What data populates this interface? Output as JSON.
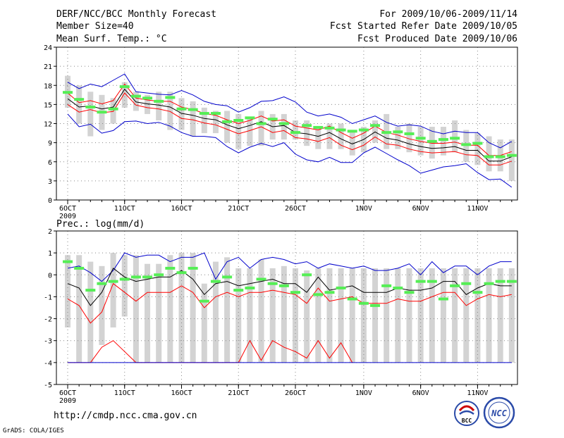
{
  "header": {
    "title": "DERF/NCC/BCC Monthly Forecast",
    "member_size": "Member Size=40",
    "variable": "Mean Surf. Temp.: °C",
    "period": "For 2009/10/06-2009/11/14",
    "fcst_started": "Fcst Started Refer Date 2009/10/05",
    "fcst_produced": "Fcst Produced Date 2009/10/06"
  },
  "footer": {
    "url": "http://cmdp.ncc.cma.gov.cn",
    "credit": "GrADS: COLA/IGES",
    "logo_bcc": "BCC",
    "logo_ncc": "NCC"
  },
  "colors": {
    "ensemble_mean": "#000000",
    "spread_inner": "#ff0000",
    "spread_outer": "#0000cc",
    "observation_marker": "#55ee55",
    "range_bar": "#d3d3d3",
    "grid": "#888888"
  },
  "chart_data": [
    {
      "type": "line",
      "title": "Mean Surf. Temp.: °C",
      "xlabel": "",
      "ylabel": "",
      "ylim": [
        0,
        24
      ],
      "yticks": [
        "0",
        "3",
        "6",
        "9",
        "12",
        "15",
        "18",
        "21",
        "24"
      ],
      "x_tick_labels": [
        "6OCT",
        "11OCT",
        "16OCT",
        "21OCT",
        "26OCT",
        "1NOV",
        "6NOV",
        "11NOV"
      ],
      "x_tick_days": [
        1,
        6,
        11,
        16,
        21,
        27,
        32,
        37
      ],
      "x_year_label": "2009",
      "grid": true,
      "days": [
        1,
        2,
        3,
        4,
        5,
        6,
        7,
        8,
        9,
        10,
        11,
        12,
        13,
        14,
        15,
        16,
        17,
        18,
        19,
        20,
        21,
        22,
        23,
        24,
        25,
        26,
        27,
        28,
        29,
        30,
        31,
        32,
        33,
        34,
        35,
        36,
        37,
        38,
        39,
        40
      ],
      "series": [
        {
          "name": "upper-bound",
          "values": [
            18.5,
            17.5,
            18.2,
            17.8,
            18.8,
            19.8,
            17.0,
            16.8,
            16.6,
            16.5,
            17.2,
            16.5,
            15.5,
            15.0,
            14.8,
            13.8,
            14.5,
            15.5,
            15.6,
            16.2,
            15.4,
            13.8,
            13.2,
            13.5,
            13.0,
            12.0,
            12.6,
            13.2,
            12.2,
            11.6,
            11.8,
            11.6,
            10.8,
            10.4,
            10.8,
            10.6,
            10.6,
            9.0,
            8.2,
            9.2
          ]
        },
        {
          "name": "upper-spread",
          "values": [
            16.8,
            15.3,
            15.6,
            15.1,
            15.6,
            18.2,
            16.0,
            15.7,
            15.5,
            15.5,
            14.6,
            14.2,
            13.6,
            13.3,
            12.6,
            12.0,
            12.5,
            13.2,
            12.4,
            12.6,
            11.6,
            11.3,
            11.0,
            11.6,
            10.6,
            9.7,
            10.5,
            11.6,
            10.6,
            10.2,
            9.6,
            9.2,
            8.9,
            8.9,
            9.1,
            8.6,
            8.6,
            7.0,
            7.0,
            7.6
          ]
        },
        {
          "name": "ensemble-mean",
          "values": [
            15.9,
            14.6,
            14.8,
            14.3,
            14.6,
            17.4,
            15.4,
            15.1,
            14.9,
            14.6,
            13.6,
            13.3,
            12.8,
            12.6,
            11.8,
            11.2,
            11.7,
            12.3,
            11.5,
            11.7,
            10.6,
            10.4,
            10.0,
            10.6,
            9.6,
            8.8,
            9.5,
            10.7,
            9.7,
            9.4,
            8.8,
            8.4,
            8.1,
            8.2,
            8.4,
            7.8,
            7.8,
            6.1,
            6.1,
            6.8
          ]
        },
        {
          "name": "lower-spread",
          "values": [
            15.0,
            13.8,
            14.2,
            13.7,
            13.9,
            16.8,
            14.9,
            14.5,
            14.3,
            13.9,
            12.8,
            12.6,
            12.1,
            11.8,
            11.1,
            10.4,
            10.9,
            11.5,
            10.6,
            10.9,
            9.8,
            9.6,
            9.2,
            9.8,
            8.6,
            7.9,
            8.6,
            9.9,
            8.8,
            8.6,
            8.0,
            7.6,
            7.4,
            7.5,
            7.6,
            7.1,
            7.0,
            5.5,
            5.5,
            6.1
          ]
        },
        {
          "name": "lower-bound",
          "values": [
            13.5,
            11.5,
            11.9,
            10.5,
            10.9,
            12.3,
            12.4,
            12.0,
            12.2,
            11.6,
            10.6,
            10.0,
            10.0,
            9.8,
            8.4,
            7.4,
            8.3,
            8.9,
            8.4,
            9.0,
            7.2,
            6.3,
            6.0,
            6.7,
            5.9,
            5.9,
            7.4,
            8.3,
            7.3,
            6.3,
            5.4,
            4.2,
            4.7,
            5.2,
            5.4,
            5.7,
            4.3,
            3.2,
            3.3,
            2.0
          ]
        },
        {
          "name": "observation",
          "values": [
            16.9,
            15.8,
            14.6,
            13.8,
            14.3,
            17.8,
            16.3,
            16.0,
            15.5,
            16.1,
            14.3,
            14.2,
            13.6,
            13.6,
            12.3,
            12.5,
            12.9,
            12.0,
            12.7,
            12.0,
            10.6,
            11.7,
            11.4,
            11.3,
            11.0,
            10.8,
            11.0,
            11.7,
            10.6,
            10.7,
            10.4,
            9.7,
            9.2,
            9.5,
            9.7,
            8.7,
            8.9,
            6.8,
            6.8,
            7.0
          ]
        }
      ],
      "range_bars": [
        [
          14.5,
          19.5
        ],
        [
          12.0,
          18.0
        ],
        [
          10.0,
          17.0
        ],
        [
          11.0,
          16.5
        ],
        [
          12.0,
          16.0
        ],
        [
          14.5,
          18.5
        ],
        [
          14.0,
          17.0
        ],
        [
          13.5,
          16.5
        ],
        [
          12.5,
          17.0
        ],
        [
          11.0,
          17.0
        ],
        [
          11.0,
          16.0
        ],
        [
          10.0,
          15.5
        ],
        [
          10.5,
          14.5
        ],
        [
          10.5,
          14.0
        ],
        [
          9.0,
          14.0
        ],
        [
          8.0,
          13.5
        ],
        [
          8.5,
          13.0
        ],
        [
          8.5,
          14.0
        ],
        [
          9.5,
          13.5
        ],
        [
          9.5,
          13.5
        ],
        [
          9.5,
          12.5
        ],
        [
          8.5,
          12.5
        ],
        [
          8.0,
          11.5
        ],
        [
          8.0,
          12.0
        ],
        [
          8.0,
          12.0
        ],
        [
          7.0,
          11.0
        ],
        [
          7.5,
          11.5
        ],
        [
          9.0,
          12.5
        ],
        [
          8.0,
          13.5
        ],
        [
          8.0,
          11.5
        ],
        [
          7.5,
          12.0
        ],
        [
          7.0,
          11.5
        ],
        [
          6.5,
          11.5
        ],
        [
          7.0,
          11.5
        ],
        [
          7.5,
          12.5
        ],
        [
          6.0,
          11.0
        ],
        [
          5.5,
          10.5
        ],
        [
          4.5,
          10.0
        ],
        [
          4.5,
          9.5
        ],
        [
          3.0,
          9.5
        ]
      ]
    },
    {
      "type": "line",
      "title": "Prec.: log(mm/d)",
      "xlabel": "",
      "ylabel": "",
      "ylim": [
        -5,
        2
      ],
      "yticks": [
        "-5",
        "-4",
        "-3",
        "-2",
        "-1",
        "0",
        "1",
        "2"
      ],
      "x_tick_labels": [
        "6OCT",
        "11OCT",
        "16OCT",
        "21OCT",
        "26OCT",
        "1NOV",
        "6NOV",
        "11NOV"
      ],
      "x_tick_days": [
        1,
        6,
        11,
        16,
        21,
        27,
        32,
        37
      ],
      "x_year_label": "2009",
      "grid": true,
      "days": [
        1,
        2,
        3,
        4,
        5,
        6,
        7,
        8,
        9,
        10,
        11,
        12,
        13,
        14,
        15,
        16,
        17,
        18,
        19,
        20,
        21,
        22,
        23,
        24,
        25,
        26,
        27,
        28,
        29,
        30,
        31,
        32,
        33,
        34,
        35,
        36,
        37,
        38,
        39,
        40
      ],
      "series": [
        {
          "name": "upper-bound",
          "values": [
            0.3,
            0.4,
            0.1,
            -0.3,
            0.2,
            1.0,
            0.8,
            0.9,
            0.9,
            0.6,
            0.8,
            0.8,
            1.0,
            -0.2,
            0.6,
            0.8,
            0.3,
            0.7,
            0.8,
            0.7,
            0.5,
            0.6,
            0.3,
            0.5,
            0.4,
            0.3,
            0.4,
            0.2,
            0.2,
            0.3,
            0.5,
            0.0,
            0.6,
            0.1,
            0.4,
            0.4,
            0.0,
            0.4,
            0.6,
            0.6
          ]
        },
        {
          "name": "ensemble-mean",
          "values": [
            -0.4,
            -0.6,
            -1.4,
            -0.8,
            0.3,
            -0.1,
            -0.3,
            -0.2,
            -0.1,
            -0.1,
            0.2,
            -0.2,
            -0.9,
            -0.4,
            -0.3,
            -0.5,
            -0.4,
            -0.3,
            -0.2,
            -0.4,
            -0.4,
            -0.8,
            -0.1,
            -0.7,
            -0.6,
            -0.5,
            -0.8,
            -0.8,
            -0.8,
            -0.6,
            -0.7,
            -0.7,
            -0.6,
            -0.3,
            -0.3,
            -0.9,
            -0.6,
            -0.4,
            -0.5,
            -0.5
          ]
        },
        {
          "name": "lower-spread",
          "values": [
            -1.1,
            -1.4,
            -2.2,
            -1.7,
            -0.4,
            -0.8,
            -1.2,
            -0.8,
            -0.8,
            -0.8,
            -0.5,
            -0.8,
            -1.5,
            -1.0,
            -0.8,
            -1.0,
            -0.8,
            -0.8,
            -0.7,
            -0.8,
            -0.9,
            -1.3,
            -0.6,
            -1.2,
            -1.1,
            -1.0,
            -1.3,
            -1.3,
            -1.3,
            -1.1,
            -1.2,
            -1.2,
            -1.0,
            -0.8,
            -0.8,
            -1.4,
            -1.1,
            -0.9,
            -1.0,
            -0.9
          ]
        },
        {
          "name": "lower-spread-deep",
          "values": [
            -4.0,
            -4.0,
            -4.0,
            -3.3,
            -3.0,
            -3.5,
            -4.0,
            -4.0,
            -4.0,
            -4.0,
            -4.0,
            -4.0,
            -4.0,
            -4.0,
            -4.0,
            -4.0,
            -3.0,
            -3.9,
            -3.0,
            -3.3,
            -3.5,
            -3.8,
            -3.0,
            -3.8,
            -3.1,
            -4.0,
            null,
            null,
            null,
            null,
            null,
            null,
            null,
            null,
            null,
            null,
            null,
            null,
            null,
            null
          ]
        },
        {
          "name": "lower-bound",
          "values": [
            -4.0,
            -4.0,
            -4.0,
            -4.0,
            -4.0,
            -4.0,
            -4.0,
            -4.0,
            -4.0,
            -4.0,
            -4.0,
            -4.0,
            -4.0,
            -4.0,
            -4.0,
            -4.0,
            -4.0,
            -4.0,
            -4.0,
            -4.0,
            -4.0,
            -4.0,
            -4.0,
            -4.0,
            -4.0,
            -4.0,
            -4.0,
            -4.0,
            -4.0,
            -4.0,
            -4.0,
            -4.0,
            -4.0,
            -4.0,
            -4.0,
            -4.0,
            -4.0,
            -4.0,
            -4.0,
            -4.0
          ]
        },
        {
          "name": "observation",
          "values": [
            0.6,
            0.3,
            -0.7,
            -0.4,
            -0.3,
            -0.2,
            -0.1,
            -0.1,
            0.0,
            0.3,
            0.1,
            0.3,
            -1.2,
            -0.3,
            -0.1,
            -0.7,
            -0.6,
            -0.2,
            -0.4,
            -0.5,
            -0.8,
            0.0,
            -0.9,
            -0.8,
            -0.6,
            -1.1,
            -1.3,
            -1.4,
            -0.5,
            -0.6,
            -0.8,
            -0.3,
            -0.3,
            -1.1,
            -0.5,
            -0.4,
            -0.8,
            -0.4,
            -0.3,
            -0.3
          ]
        }
      ],
      "range_bars": [
        [
          -2.4,
          0.9
        ],
        [
          -4.0,
          0.9
        ],
        [
          -4.0,
          0.6
        ],
        [
          -3.2,
          0.4
        ],
        [
          -2.4,
          1.0
        ],
        [
          -1.9,
          0.9
        ],
        [
          -4.0,
          0.9
        ],
        [
          -4.0,
          0.5
        ],
        [
          -4.0,
          0.5
        ],
        [
          -4.0,
          0.9
        ],
        [
          -4.0,
          1.0
        ],
        [
          -4.0,
          1.0
        ],
        [
          -4.0,
          -0.4
        ],
        [
          -4.0,
          0.6
        ],
        [
          -4.0,
          0.8
        ],
        [
          -4.0,
          0.3
        ],
        [
          -4.0,
          0.3
        ],
        [
          -4.0,
          0.7
        ],
        [
          -4.0,
          0.3
        ],
        [
          -4.0,
          0.4
        ],
        [
          -4.0,
          0.3
        ],
        [
          -4.0,
          0.2
        ],
        [
          -4.0,
          0.3
        ],
        [
          -4.0,
          0.3
        ],
        [
          -4.0,
          0.3
        ],
        [
          -4.0,
          0.3
        ],
        [
          -4.0,
          0.3
        ],
        [
          -4.0,
          0.3
        ],
        [
          -4.0,
          0.3
        ],
        [
          -4.0,
          0.3
        ],
        [
          -4.0,
          0.3
        ],
        [
          -4.0,
          0.3
        ],
        [
          -4.0,
          0.3
        ],
        [
          -4.0,
          0.3
        ],
        [
          -4.0,
          0.3
        ],
        [
          -4.0,
          0.3
        ],
        [
          -4.0,
          0.3
        ],
        [
          -4.0,
          0.3
        ],
        [
          -4.0,
          0.3
        ],
        [
          -4.0,
          0.3
        ]
      ]
    }
  ]
}
